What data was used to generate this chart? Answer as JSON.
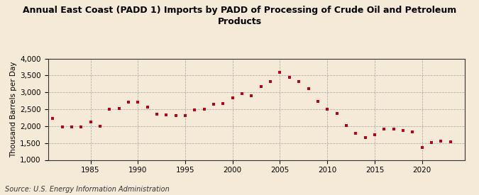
{
  "title": "Annual East Coast (PADD 1) Imports by PADD of Processing of Crude Oil and Petroleum\nProducts",
  "ylabel": "Thousand Barrels per Day",
  "source": "Source: U.S. Energy Information Administration",
  "background_color": "#f5ead8",
  "marker_color": "#c0001a",
  "ylim": [
    1000,
    4000
  ],
  "yticks": [
    1000,
    1500,
    2000,
    2500,
    3000,
    3500,
    4000
  ],
  "ytick_labels": [
    "1,000",
    "1,500",
    "2,000",
    "2,500",
    "3,000",
    "3,500",
    "4,000"
  ],
  "xticks": [
    1985,
    1990,
    1995,
    2000,
    2005,
    2010,
    2015,
    2020
  ],
  "xlim": [
    1980.5,
    2024.5
  ],
  "years": [
    1981,
    1982,
    1983,
    1984,
    1985,
    1986,
    1987,
    1988,
    1989,
    1990,
    1991,
    1992,
    1993,
    1994,
    1995,
    1996,
    1997,
    1998,
    1999,
    2000,
    2001,
    2002,
    2003,
    2004,
    2005,
    2006,
    2007,
    2008,
    2009,
    2010,
    2011,
    2012,
    2013,
    2014,
    2015,
    2016,
    2017,
    2018,
    2019,
    2020,
    2021,
    2022,
    2023
  ],
  "values": [
    2220,
    1980,
    1970,
    1985,
    2130,
    2000,
    2490,
    2520,
    2720,
    2720,
    2570,
    2360,
    2340,
    2310,
    2310,
    2480,
    2500,
    2640,
    2660,
    2840,
    2960,
    2900,
    3180,
    3320,
    3600,
    3440,
    3320,
    3100,
    2740,
    2510,
    2370,
    2010,
    1790,
    1660,
    1750,
    1920,
    1920,
    1870,
    1830,
    1370,
    1510,
    1560,
    1530
  ],
  "title_fontsize": 9,
  "tick_fontsize": 7.5,
  "ylabel_fontsize": 7.5,
  "source_fontsize": 7
}
